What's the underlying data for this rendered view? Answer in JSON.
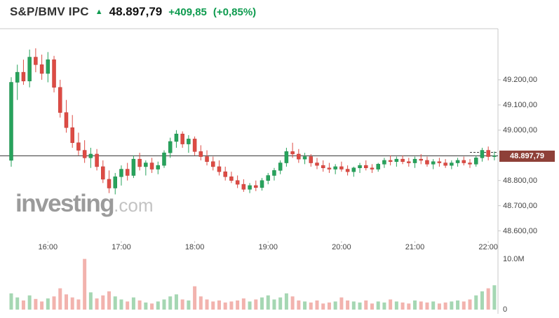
{
  "header": {
    "symbol": "S&P/BMV IPC",
    "arrow": "▲",
    "last": "48.897,79",
    "change": "+409,85",
    "change_pct": "(+0,85%)"
  },
  "watermark": {
    "brand": "investing",
    "tld": ".com"
  },
  "colors": {
    "accent_green": "#0e9b4f",
    "candle_up": "#27a35c",
    "candle_up_border": "#1f8a4c",
    "candle_down": "#dd4b44",
    "candle_down_border": "#c03c36",
    "volume_up": "#a5d7b3",
    "volume_down": "#f2b3ae",
    "border": "#c9c9c9",
    "last_price_line": "#3a3a3a",
    "tag_bg": "#8e4038",
    "tag_text": "#ffffff",
    "axis_text": "#444444"
  },
  "chart_data": {
    "type": "candlestick+volume",
    "title": "S&P/BMV IPC intraday 5-minute chart",
    "grid": false,
    "legend": false,
    "x_ticks": [
      "16:00",
      "17:00",
      "18:00",
      "19:00",
      "20:00",
      "21:00",
      "22:00"
    ],
    "y_ticks": [
      {
        "value": 49200,
        "label": "49.200,00"
      },
      {
        "value": 49100,
        "label": "49.100,00"
      },
      {
        "value": 49000,
        "label": "49.000,00"
      },
      {
        "value": 48800,
        "label": "48.800,00"
      },
      {
        "value": 48700,
        "label": "48.700,00"
      },
      {
        "value": 48600,
        "label": "48.600,00"
      }
    ],
    "price_range": [
      48560,
      49400
    ],
    "last_price": {
      "value": 48897.79,
      "label": "48.897,79"
    },
    "dashed_level": 48912,
    "volume_ticks": [
      {
        "valueM": 10.0,
        "label": "10.0M"
      },
      {
        "valueM": 0,
        "label": "0"
      }
    ],
    "volume_scale_max_m": 10.5,
    "candle_fields": [
      "time",
      "open",
      "high",
      "low",
      "close",
      "volume_millions"
    ],
    "candles": [
      [
        "15:30",
        48880,
        49210,
        48855,
        49190,
        3.2
      ],
      [
        "15:35",
        49190,
        49260,
        49120,
        49230,
        2.4
      ],
      [
        "15:40",
        49230,
        49280,
        49180,
        49195,
        1.8
      ],
      [
        "15:45",
        49195,
        49320,
        49170,
        49290,
        2.8
      ],
      [
        "15:50",
        49290,
        49325,
        49230,
        49260,
        2.1
      ],
      [
        "15:55",
        49260,
        49300,
        49200,
        49225,
        1.6
      ],
      [
        "16:00",
        49225,
        49310,
        49190,
        49280,
        2.2
      ],
      [
        "16:05",
        49280,
        49295,
        49150,
        49170,
        2.6
      ],
      [
        "16:10",
        49170,
        49200,
        49050,
        49070,
        4.2
      ],
      [
        "16:15",
        49070,
        49120,
        48990,
        49010,
        3.0
      ],
      [
        "16:20",
        49010,
        49060,
        48930,
        48950,
        2.4
      ],
      [
        "16:25",
        48950,
        48990,
        48900,
        48920,
        2.0
      ],
      [
        "16:30",
        48920,
        48960,
        48870,
        48890,
        10.0
      ],
      [
        "16:35",
        48890,
        48930,
        48850,
        48905,
        3.4
      ],
      [
        "16:40",
        48905,
        48925,
        48840,
        48855,
        2.2
      ],
      [
        "16:45",
        48855,
        48880,
        48790,
        48805,
        2.8
      ],
      [
        "16:50",
        48805,
        48840,
        48750,
        48770,
        3.6
      ],
      [
        "16:55",
        48770,
        48830,
        48745,
        48815,
        2.6
      ],
      [
        "17:00",
        48815,
        48860,
        48780,
        48845,
        2.0
      ],
      [
        "17:05",
        48845,
        48870,
        48800,
        48820,
        1.6
      ],
      [
        "17:10",
        48820,
        48900,
        48810,
        48885,
        2.4
      ],
      [
        "17:15",
        48885,
        48910,
        48840,
        48855,
        1.8
      ],
      [
        "17:20",
        48855,
        48880,
        48820,
        48870,
        1.4
      ],
      [
        "17:25",
        48870,
        48890,
        48830,
        48845,
        1.2
      ],
      [
        "17:30",
        48845,
        48875,
        48825,
        48860,
        1.6
      ],
      [
        "17:35",
        48860,
        48920,
        48850,
        48910,
        2.0
      ],
      [
        "17:40",
        48910,
        48970,
        48890,
        48955,
        2.6
      ],
      [
        "17:45",
        48955,
        49000,
        48930,
        48985,
        3.0
      ],
      [
        "17:50",
        48985,
        48995,
        48930,
        48945,
        2.0
      ],
      [
        "17:55",
        48945,
        48980,
        48910,
        48965,
        1.8
      ],
      [
        "18:00",
        48965,
        48975,
        48900,
        48915,
        4.6
      ],
      [
        "18:05",
        48915,
        48940,
        48880,
        48895,
        2.6
      ],
      [
        "18:10",
        48895,
        48920,
        48860,
        48875,
        2.0
      ],
      [
        "18:15",
        48875,
        48895,
        48840,
        48855,
        1.6
      ],
      [
        "18:20",
        48855,
        48880,
        48820,
        48835,
        1.8
      ],
      [
        "18:25",
        48835,
        48855,
        48800,
        48815,
        1.4
      ],
      [
        "18:30",
        48815,
        48835,
        48790,
        48800,
        1.6
      ],
      [
        "18:35",
        48800,
        48820,
        48770,
        48785,
        1.8
      ],
      [
        "18:40",
        48785,
        48805,
        48755,
        48765,
        2.2
      ],
      [
        "18:45",
        48765,
        48790,
        48750,
        48780,
        1.6
      ],
      [
        "18:50",
        48780,
        48800,
        48758,
        48772,
        2.0
      ],
      [
        "18:55",
        48772,
        48810,
        48760,
        48800,
        2.4
      ],
      [
        "19:00",
        48800,
        48830,
        48785,
        48820,
        2.8
      ],
      [
        "19:05",
        48820,
        48850,
        48800,
        48840,
        2.0
      ],
      [
        "19:10",
        48840,
        48880,
        48825,
        48870,
        2.4
      ],
      [
        "19:15",
        48870,
        48930,
        48855,
        48915,
        3.2
      ],
      [
        "19:20",
        48915,
        48950,
        48890,
        48905,
        2.6
      ],
      [
        "19:25",
        48905,
        48925,
        48870,
        48885,
        1.8
      ],
      [
        "19:30",
        48885,
        48910,
        48865,
        48895,
        1.6
      ],
      [
        "19:35",
        48895,
        48905,
        48855,
        48870,
        1.4
      ],
      [
        "19:40",
        48870,
        48890,
        48845,
        48860,
        1.8
      ],
      [
        "19:45",
        48860,
        48880,
        48835,
        48850,
        1.2
      ],
      [
        "19:50",
        48850,
        48870,
        48830,
        48845,
        1.4
      ],
      [
        "19:55",
        48845,
        48865,
        48825,
        48855,
        1.6
      ],
      [
        "20:00",
        48855,
        48875,
        48835,
        48845,
        2.4
      ],
      [
        "20:05",
        48845,
        48860,
        48820,
        48835,
        1.8
      ],
      [
        "20:10",
        48835,
        48855,
        48815,
        48850,
        1.6
      ],
      [
        "20:15",
        48850,
        48870,
        48830,
        48860,
        1.4
      ],
      [
        "20:20",
        48860,
        48880,
        48840,
        48850,
        1.8
      ],
      [
        "20:25",
        48850,
        48865,
        48830,
        48845,
        1.2
      ],
      [
        "20:30",
        48845,
        48870,
        48835,
        48865,
        1.6
      ],
      [
        "20:35",
        48865,
        48890,
        48850,
        48880,
        1.4
      ],
      [
        "20:40",
        48880,
        48900,
        48860,
        48875,
        2.0
      ],
      [
        "20:45",
        48875,
        48895,
        48855,
        48885,
        1.6
      ],
      [
        "20:50",
        48885,
        48900,
        48865,
        48875,
        1.4
      ],
      [
        "20:55",
        48875,
        48890,
        48855,
        48870,
        1.2
      ],
      [
        "21:00",
        48870,
        48895,
        48850,
        48885,
        1.8
      ],
      [
        "21:05",
        48885,
        48905,
        48865,
        48880,
        1.6
      ],
      [
        "21:10",
        48880,
        48895,
        48855,
        48865,
        1.4
      ],
      [
        "21:15",
        48865,
        48885,
        48845,
        48875,
        1.6
      ],
      [
        "21:20",
        48875,
        48890,
        48855,
        48870,
        1.2
      ],
      [
        "21:25",
        48870,
        48885,
        48850,
        48860,
        1.4
      ],
      [
        "21:30",
        48860,
        48880,
        48845,
        48870,
        1.6
      ],
      [
        "21:35",
        48870,
        48890,
        48855,
        48880,
        1.8
      ],
      [
        "21:40",
        48880,
        48895,
        48860,
        48870,
        1.6
      ],
      [
        "21:45",
        48870,
        48885,
        48850,
        48865,
        2.0
      ],
      [
        "21:50",
        48865,
        48900,
        48855,
        48890,
        2.8
      ],
      [
        "21:55",
        48890,
        48930,
        48875,
        48920,
        3.6
      ],
      [
        "22:00",
        48920,
        48935,
        48880,
        48895,
        4.2
      ],
      [
        "22:05",
        48895,
        48915,
        48880,
        48897.79,
        4.8
      ]
    ]
  }
}
